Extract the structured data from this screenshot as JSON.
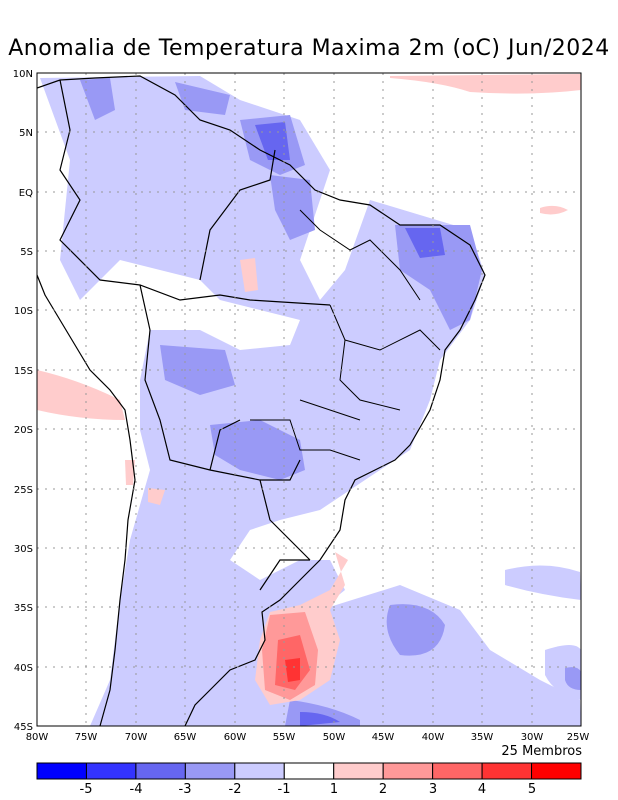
{
  "title": "Anomalia de Temperatura Maxima 2m (oC) Jun/2024",
  "members_label": "25 Membros",
  "lat_ticks": [
    "10N",
    "5N",
    "EQ",
    "5S",
    "10S",
    "15S",
    "20S",
    "25S",
    "30S",
    "35S",
    "40S",
    "45S"
  ],
  "lon_ticks": [
    "80W",
    "75W",
    "70W",
    "65W",
    "60W",
    "55W",
    "50W",
    "45W",
    "40W",
    "35W",
    "30W",
    "25W"
  ],
  "colorbar": {
    "labels": [
      "-5",
      "-4",
      "-3",
      "-2",
      "-1",
      "1",
      "2",
      "3",
      "4",
      "5"
    ],
    "colors": [
      "#0000ff",
      "#3333ff",
      "#6666f0",
      "#9999f5",
      "#ccccff",
      "#ffffff",
      "#ffcccc",
      "#ff9999",
      "#ff6666",
      "#ff3333",
      "#ff0000"
    ]
  },
  "map": {
    "lat_range": [
      10,
      -45
    ],
    "lon_range": [
      -80,
      -25
    ],
    "grid": true
  }
}
